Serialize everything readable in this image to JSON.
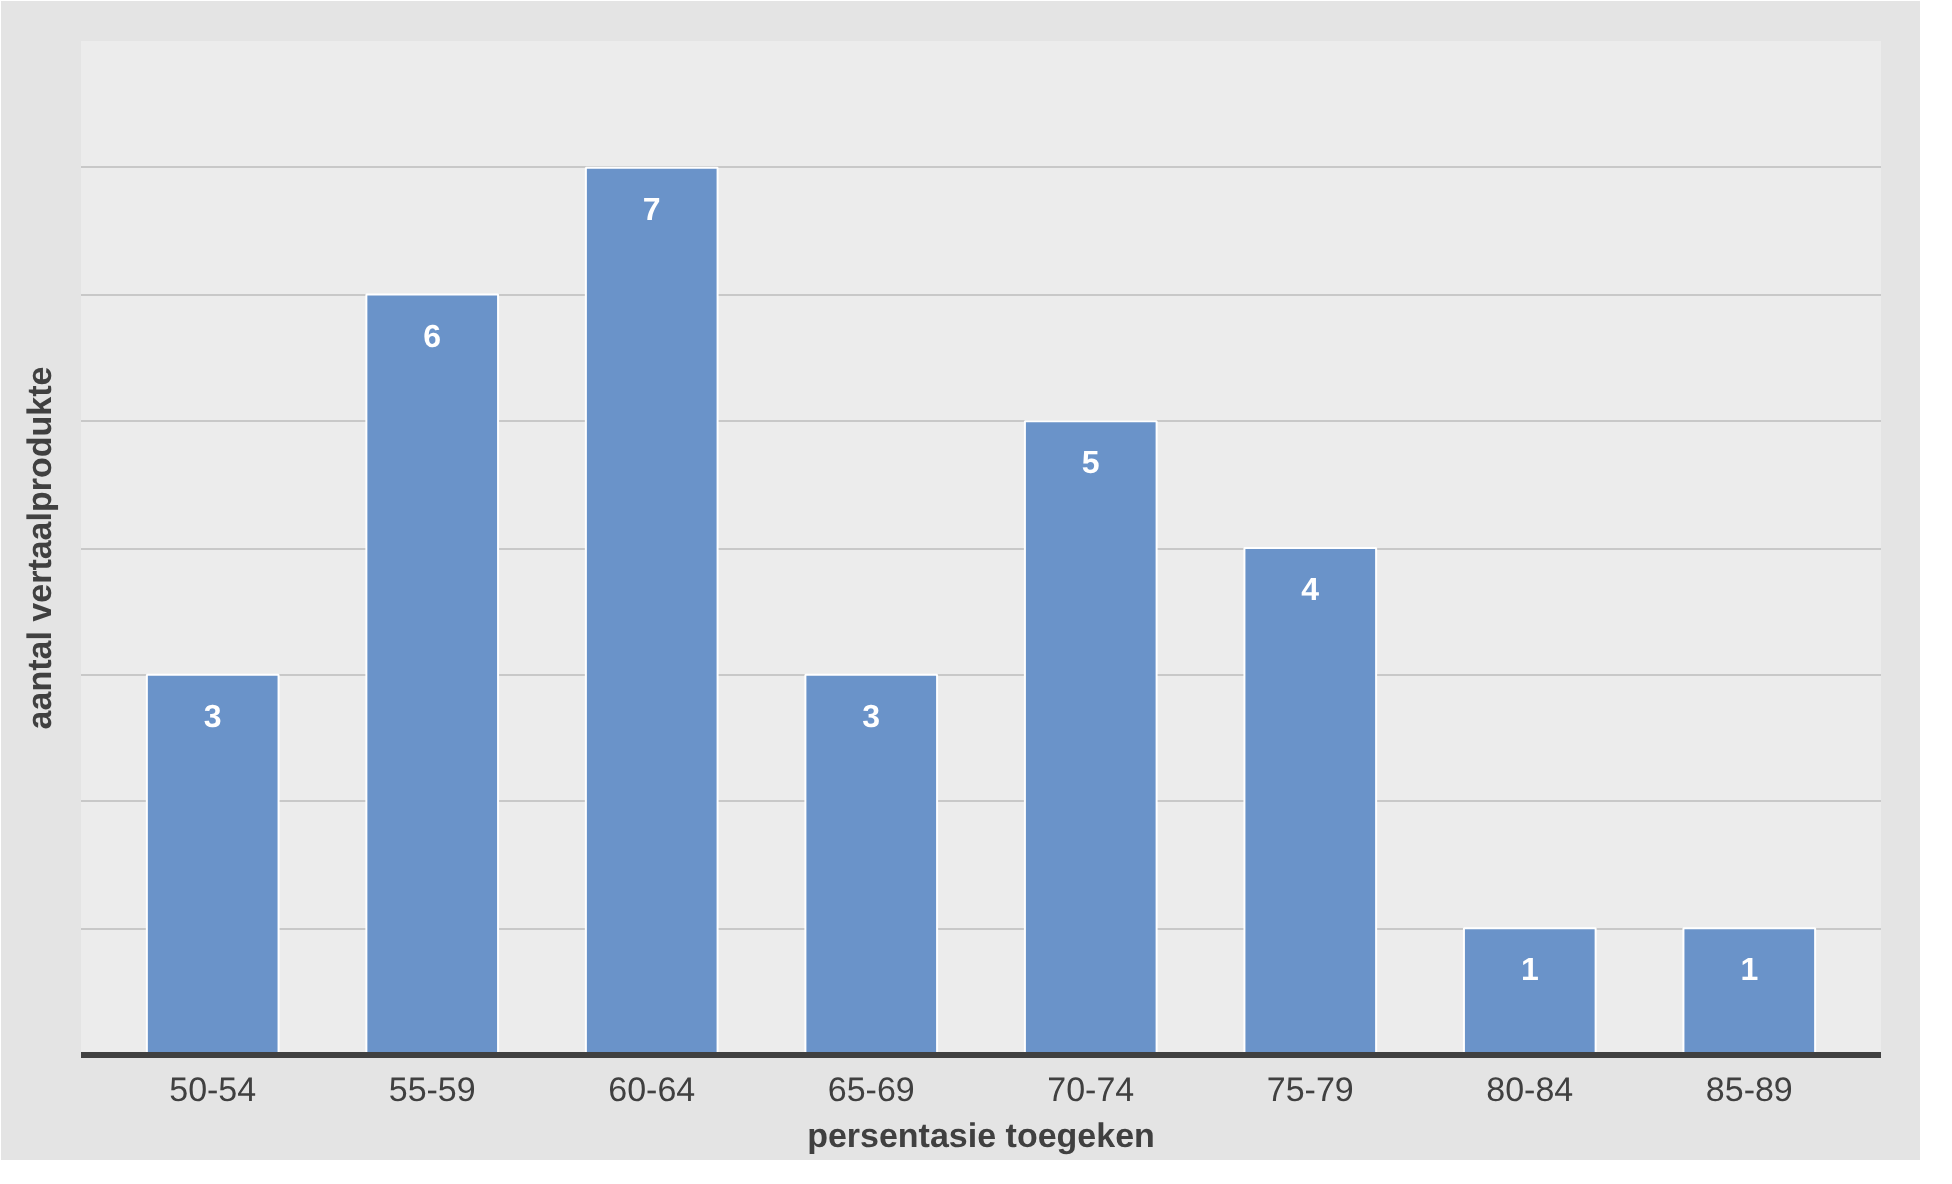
{
  "chart_data": {
    "type": "bar",
    "xlabel": "persentasie toegeken",
    "ylabel": "aantal vertaalprodukte",
    "categories": [
      "50-54",
      "55-59",
      "60-64",
      "65-69",
      "70-74",
      "75-79",
      "80-84",
      "85-89"
    ],
    "values": [
      3,
      6,
      7,
      3,
      5,
      4,
      1,
      1
    ],
    "color": "#6a93c9",
    "ylim": [
      0,
      8
    ],
    "yticks": [
      {
        "value": 0,
        "label": null
      },
      {
        "value": 1,
        "label": null
      },
      {
        "value": 2,
        "label": null
      },
      {
        "value": 3,
        "label": null
      },
      {
        "value": 4,
        "label": null
      },
      {
        "value": 5,
        "label": null
      },
      {
        "value": 6,
        "label": null
      },
      {
        "value": 7,
        "label": null
      },
      {
        "value": 8,
        "label": null
      }
    ],
    "grid": "y",
    "data_labels": true,
    "tick_labels": "x"
  }
}
